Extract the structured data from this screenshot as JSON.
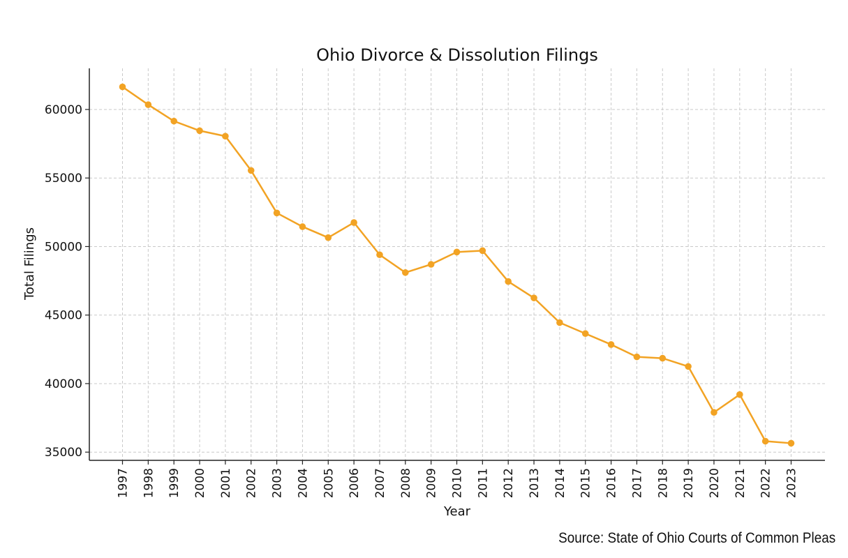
{
  "chart_data": {
    "type": "line",
    "title": "Ohio Divorce & Dissolution Filings",
    "xlabel": "Year",
    "ylabel": "Total Filings",
    "categories": [
      "1997",
      "1998",
      "1999",
      "2000",
      "2001",
      "2002",
      "2003",
      "2004",
      "2005",
      "2006",
      "2007",
      "2008",
      "2009",
      "2010",
      "2011",
      "2012",
      "2013",
      "2014",
      "2015",
      "2016",
      "2017",
      "2018",
      "2019",
      "2020",
      "2021",
      "2022",
      "2023"
    ],
    "series": [
      {
        "values": [
          61650,
          60350,
          59150,
          58450,
          58050,
          55550,
          52450,
          51450,
          50650,
          51750,
          49400,
          48100,
          48700,
          49600,
          49700,
          47450,
          46250,
          44450,
          43650,
          42850,
          41950,
          41850,
          41250,
          37900,
          39200,
          35800,
          35650
        ]
      }
    ],
    "yticks": [
      35000,
      40000,
      45000,
      50000,
      55000,
      60000
    ],
    "ylim": [
      34400,
      63000
    ],
    "grid": true,
    "line_color": "#F2A324"
  },
  "source": "Source: State of Ohio Courts of Common Pleas"
}
